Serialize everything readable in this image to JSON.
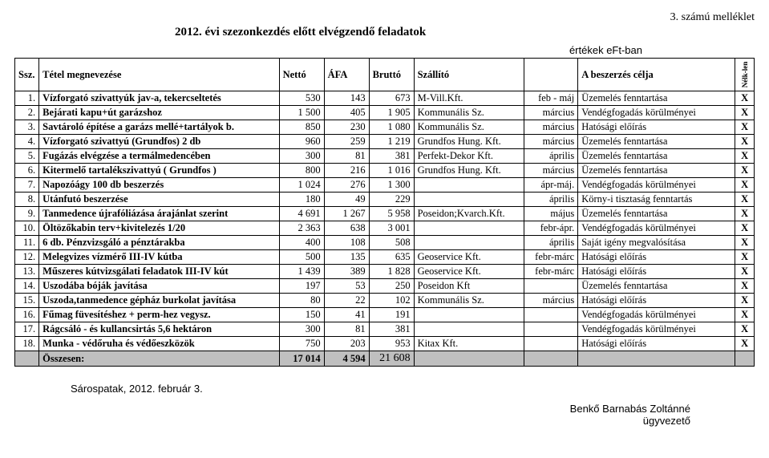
{
  "attachment_label": "3. számú melléklet",
  "title": "2012.  évi szezonkezdés előtt elvégzendő feladatok",
  "values_note": "értékek eFt-ban",
  "headers": {
    "ssz": "Ssz.",
    "tetel": "Tétel megnevezése",
    "netto": "Nettó",
    "afa": "ÁFA",
    "brutto": "Bruttó",
    "szallito": "Szállító",
    "hatarido_blank": "",
    "cel": "A beszerzés célja",
    "nelk": "Nélk-len"
  },
  "rows": [
    {
      "n": "1.",
      "t": "Vízforgató szivattyúk jav-a, tekercseltetés",
      "netto": "530",
      "afa": "143",
      "brutto": "673",
      "sz": "M-Vill.Kft.",
      "d": "feb - máj",
      "cel": "Üzemelés fenntartása",
      "x": "X"
    },
    {
      "n": "2.",
      "t": "Bejárati kapu+út garázshoz",
      "netto": "1 500",
      "afa": "405",
      "brutto": "1 905",
      "sz": "Kommunális Sz.",
      "d": "március",
      "cel": "Vendégfogadás körülményei",
      "x": "X"
    },
    {
      "n": "3.",
      "t": "Savtároló építése a garázs mellé+tartályok b.",
      "netto": "850",
      "afa": "230",
      "brutto": "1 080",
      "sz": "Kommunális Sz.",
      "d": "március",
      "cel": "Hatósági előírás",
      "x": "X"
    },
    {
      "n": "4.",
      "t": "Vízforgató szivattyú (Grundfos) 2 db",
      "netto": "960",
      "afa": "259",
      "brutto": "1 219",
      "sz": "Grundfos Hung. Kft.",
      "d": "március",
      "cel": "Üzemelés fenntartása",
      "x": "X"
    },
    {
      "n": "5.",
      "t": "Fugázás elvégzése a termálmedencében",
      "netto": "300",
      "afa": "81",
      "brutto": "381",
      "sz": "Perfekt-Dekor Kft.",
      "d": "április",
      "cel": "Üzemelés fenntartása",
      "x": "X"
    },
    {
      "n": "6.",
      "t": "Kitermelő tartalékszivattyú ( Grundfos )",
      "netto": "800",
      "afa": "216",
      "brutto": "1 016",
      "sz": "Grundfos Hung. Kft.",
      "d": "március",
      "cel": "Üzemelés fenntartása",
      "x": "X"
    },
    {
      "n": "7.",
      "t": "Napozóágy 100 db beszerzés",
      "netto": "1 024",
      "afa": "276",
      "brutto": "1 300",
      "sz": "",
      "d": "ápr-máj.",
      "cel": "Vendégfogadás körülményei",
      "x": "X"
    },
    {
      "n": "8.",
      "t": "Utánfutó beszerzése",
      "netto": "180",
      "afa": "49",
      "brutto": "229",
      "sz": "",
      "d": "április",
      "cel": "Körny-i tisztaság fenntartás",
      "x": "X"
    },
    {
      "n": "9.",
      "t": "Tanmedence újrafóliázása árajánlat szerint",
      "netto": "4 691",
      "afa": "1 267",
      "brutto": "5 958",
      "sz": "Poseidon;Kvarch.Kft.",
      "d": "május",
      "cel": "Üzemelés fenntartása",
      "x": "X"
    },
    {
      "n": "10.",
      "t": "Öltözőkabin terv+kivitelezés 1/20",
      "netto": "2 363",
      "afa": "638",
      "brutto": "3 001",
      "sz": "",
      "d": "febr-ápr.",
      "cel": "Vendégfogadás körülményei",
      "x": "X"
    },
    {
      "n": "11.",
      "t": "6 db. Pénzvizsgáló a pénztárakba",
      "netto": "400",
      "afa": "108",
      "brutto": "508",
      "sz": "",
      "d": "április",
      "cel": "Saját igény megvalósítása",
      "x": "X"
    },
    {
      "n": "12.",
      "t": "Melegvizes vízmérő III-IV kútba",
      "netto": "500",
      "afa": "135",
      "brutto": "635",
      "sz": "Geoservice Kft.",
      "d": "febr-márc",
      "cel": "Hatósági előírás",
      "x": "X"
    },
    {
      "n": "13.",
      "t": "Műszeres kútvizsgálati feladatok III-IV kút",
      "netto": "1 439",
      "afa": "389",
      "brutto": "1 828",
      "sz": "Geoservice Kft.",
      "d": "febr-márc",
      "cel": "Hatósági előírás",
      "x": "X"
    },
    {
      "n": "14.",
      "t": "Uszodába bóják javítása",
      "netto": "197",
      "afa": "53",
      "brutto": "250",
      "sz": "Poseidon Kft",
      "d": "",
      "cel": "Üzemelés fenntartása",
      "x": "X"
    },
    {
      "n": "15.",
      "t": "Uszoda,tanmedence gépház burkolat javítása",
      "netto": "80",
      "afa": "22",
      "brutto": "102",
      "sz": "Kommunális Sz.",
      "d": "március",
      "cel": "Hatósági előírás",
      "x": "X"
    },
    {
      "n": "16.",
      "t": "Fűmag füvesítéshez + perm-hez vegysz.",
      "netto": "150",
      "afa": "41",
      "brutto": "191",
      "sz": "",
      "d": "",
      "cel": "Vendégfogadás körülményei",
      "x": "X"
    },
    {
      "n": "17.",
      "t": "Rágcsáló - és kullancsirtás 5,6 hektáron",
      "netto": "300",
      "afa": "81",
      "brutto": "381",
      "sz": "",
      "d": "",
      "cel": "Vendégfogadás körülményei",
      "x": "X"
    },
    {
      "n": "18.",
      "t": "Munka - védőruha és védőeszközök",
      "netto": "750",
      "afa": "203",
      "brutto": "953",
      "sz": "Kitax Kft.",
      "d": "",
      "cel": "Hatósági előírás",
      "x": "X"
    }
  ],
  "total": {
    "label": "Összesen:",
    "netto": "17 014",
    "afa": "4 594",
    "brutto": "21 608"
  },
  "footer_place_date": "Sárospatak, 2012. február 3.",
  "footer_name": "Benkő Barnabás Zoltánné",
  "footer_role": "ügyvezető"
}
